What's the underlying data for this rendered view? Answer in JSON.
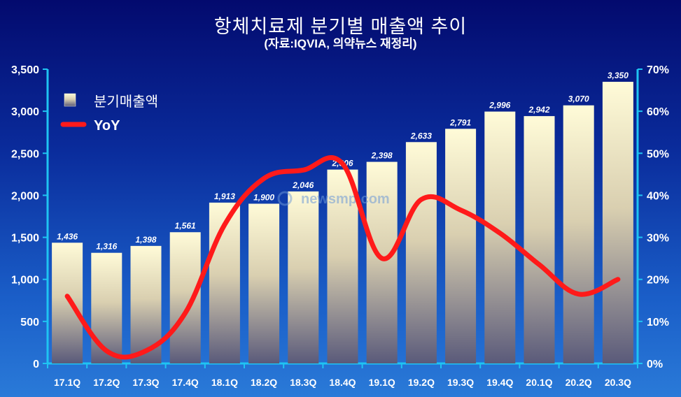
{
  "title": "항체치료제 분기별 매출액 추이",
  "subtitle": "(자료:IQVIA, 의약뉴스 재정리)",
  "watermark": "newsmp.com",
  "colors": {
    "bar_top": "#fffbd8",
    "bar_bottom": "#5a5a7a",
    "line": "#ff1a1a",
    "axis": "#1fc4f2"
  },
  "chart_data": {
    "type": "bar",
    "categories": [
      "17.1Q",
      "17.2Q",
      "17.3Q",
      "17.4Q",
      "18.1Q",
      "18.2Q",
      "18.3Q",
      "18.4Q",
      "19.1Q",
      "19.2Q",
      "19.3Q",
      "19.4Q",
      "20.1Q",
      "20.2Q",
      "20.3Q"
    ],
    "series": [
      {
        "name": "분기매출액",
        "type": "bar",
        "axis": "left",
        "values": [
          1436,
          1316,
          1398,
          1561,
          1913,
          1900,
          2046,
          2306,
          2398,
          2633,
          2791,
          2996,
          2942,
          3070,
          3350
        ],
        "labels": [
          "1,436",
          "1,316",
          "1,398",
          "1,561",
          "1,913",
          "1,900",
          "2,046",
          "2,306",
          "2,398",
          "2,633",
          "2,791",
          "2,996",
          "2,942",
          "3,070",
          "3,350"
        ]
      },
      {
        "name": "YoY",
        "type": "line",
        "axis": "right",
        "values": [
          16,
          3,
          3,
          12,
          33,
          44,
          46,
          47.5,
          25,
          39,
          36.5,
          31,
          23.5,
          16.5,
          20
        ]
      }
    ],
    "ylim": [
      0,
      3500
    ],
    "y_ticks": [
      "0",
      "500",
      "1,000",
      "1,500",
      "2,000",
      "2,500",
      "3,000",
      "3,500"
    ],
    "y2lim": [
      0,
      70
    ],
    "y2_ticks": [
      "0%",
      "10%",
      "20%",
      "30%",
      "40%",
      "50%",
      "60%",
      "70%"
    ],
    "legend_position": "top-left",
    "grid": false
  }
}
